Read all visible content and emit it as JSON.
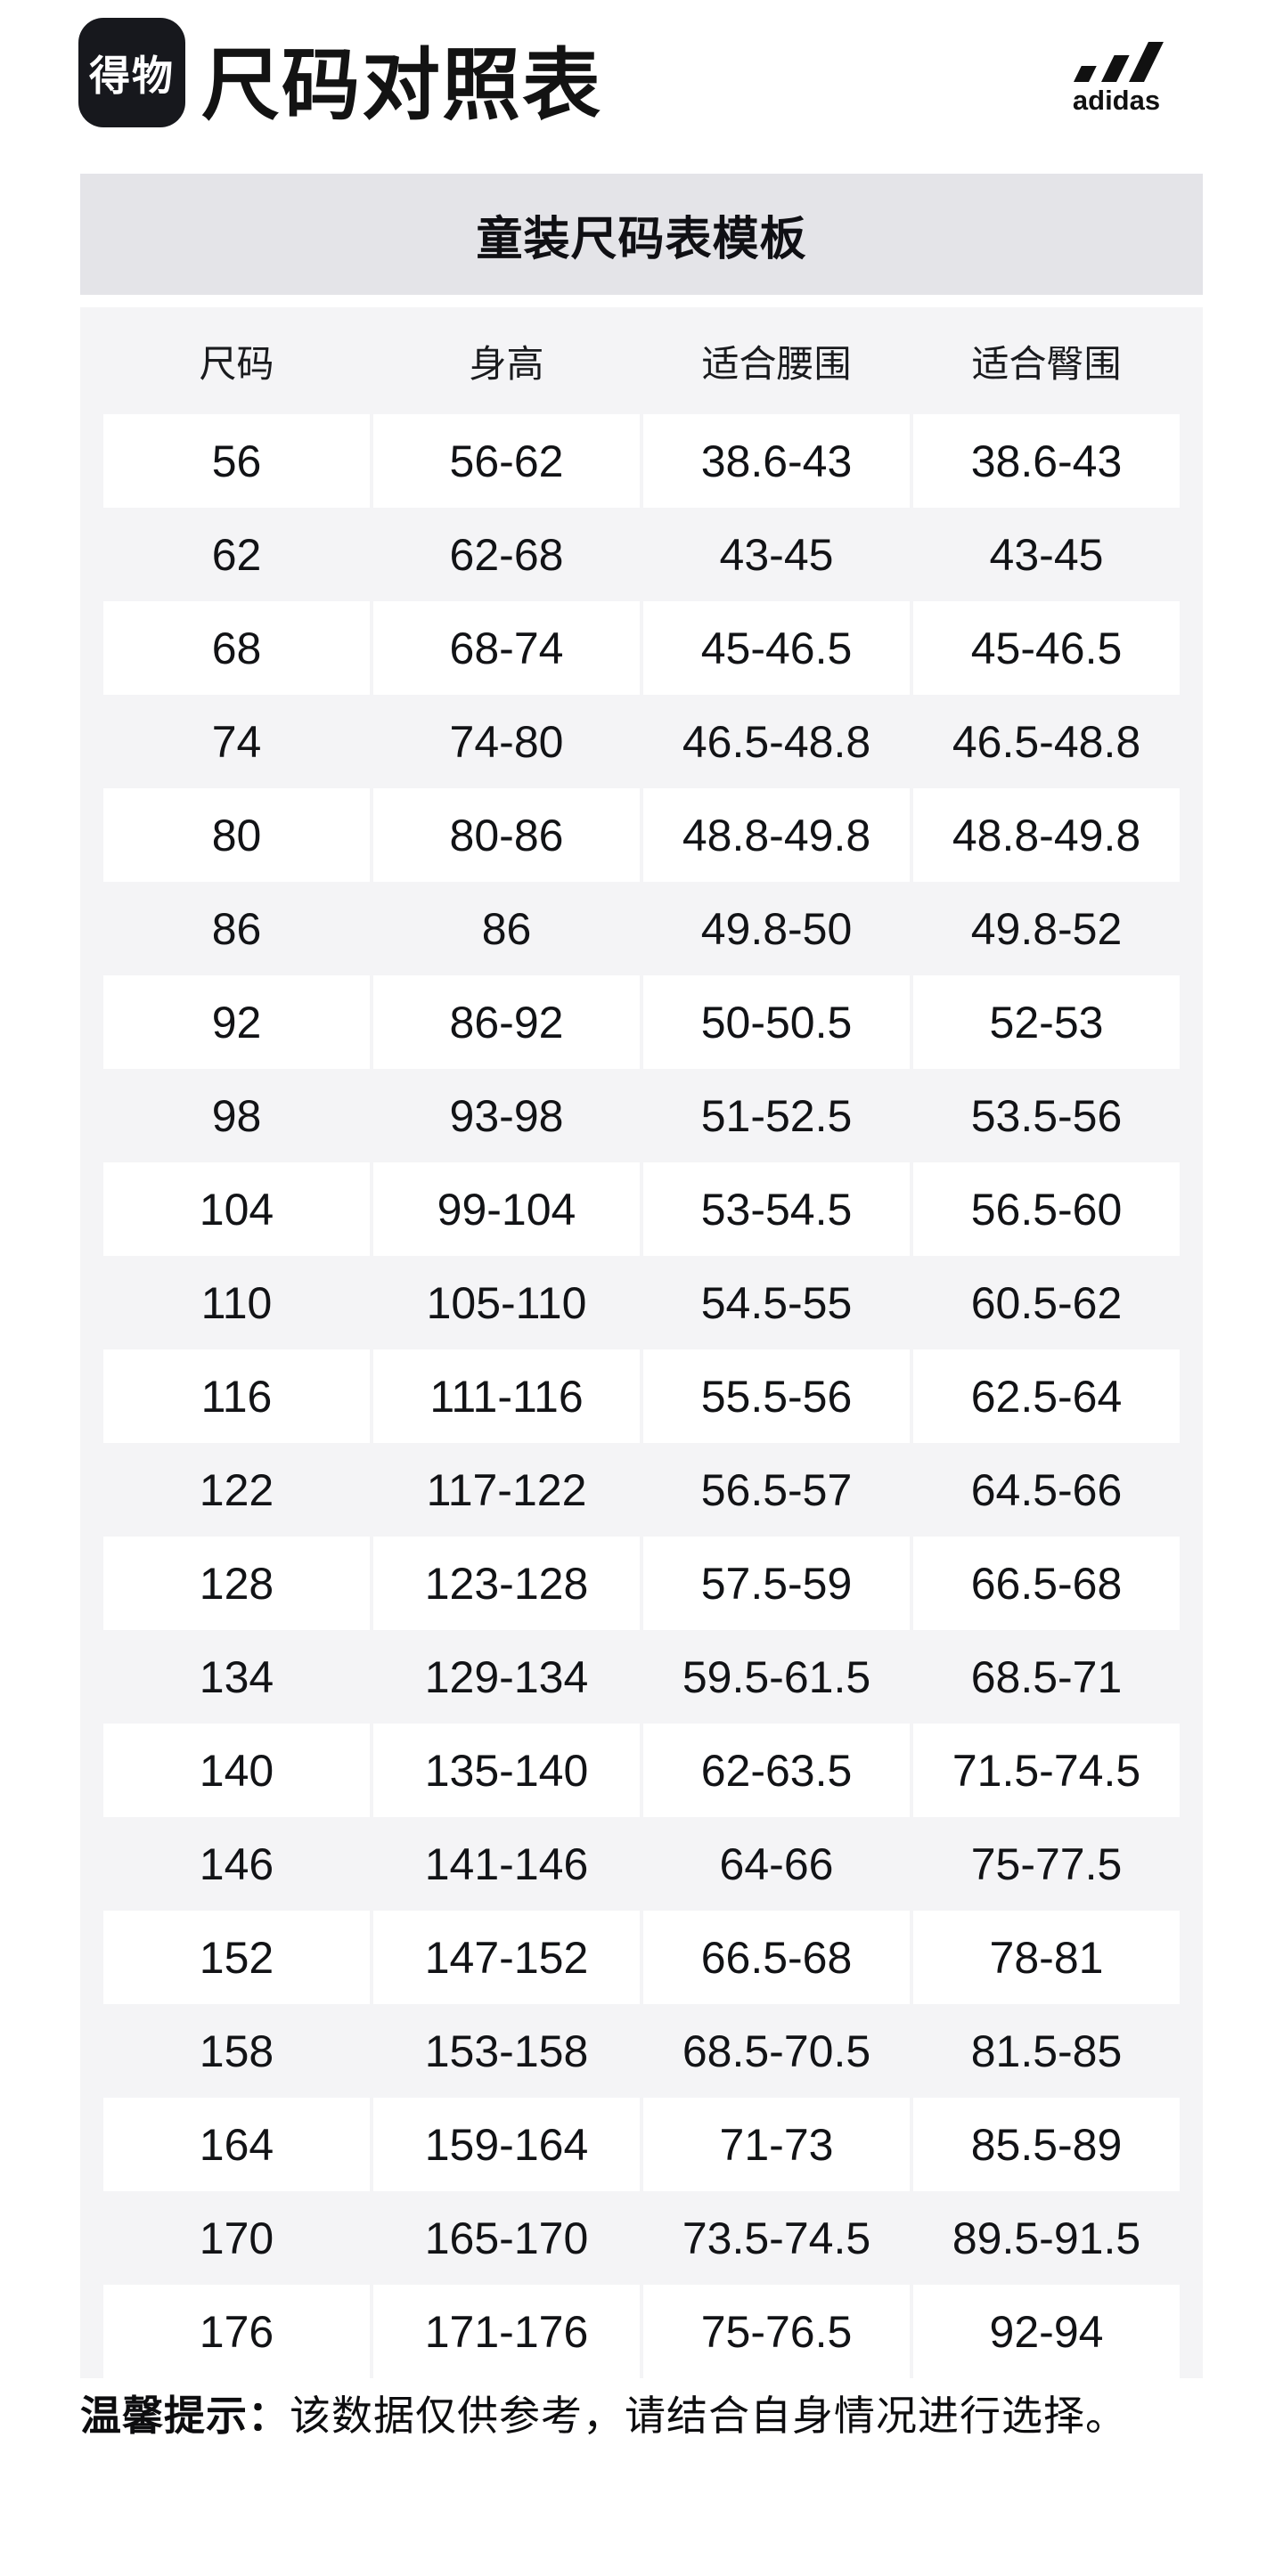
{
  "header": {
    "logo_text": "得物",
    "title": "尺码对照表",
    "brand": "adidas"
  },
  "banner": {
    "title": "童装尺码表模板"
  },
  "table": {
    "columns": [
      "尺码",
      "身高",
      "适合腰围",
      "适合臀围"
    ],
    "rows": [
      [
        "56",
        "56-62",
        "38.6-43",
        "38.6-43"
      ],
      [
        "62",
        "62-68",
        "43-45",
        "43-45"
      ],
      [
        "68",
        "68-74",
        "45-46.5",
        "45-46.5"
      ],
      [
        "74",
        "74-80",
        "46.5-48.8",
        "46.5-48.8"
      ],
      [
        "80",
        "80-86",
        "48.8-49.8",
        "48.8-49.8"
      ],
      [
        "86",
        "86",
        "49.8-50",
        "49.8-52"
      ],
      [
        "92",
        "86-92",
        "50-50.5",
        "52-53"
      ],
      [
        "98",
        "93-98",
        "51-52.5",
        "53.5-56"
      ],
      [
        "104",
        "99-104",
        "53-54.5",
        "56.5-60"
      ],
      [
        "110",
        "105-110",
        "54.5-55",
        "60.5-62"
      ],
      [
        "116",
        "111-116",
        "55.5-56",
        "62.5-64"
      ],
      [
        "122",
        "117-122",
        "56.5-57",
        "64.5-66"
      ],
      [
        "128",
        "123-128",
        "57.5-59",
        "66.5-68"
      ],
      [
        "134",
        "129-134",
        "59.5-61.5",
        "68.5-71"
      ],
      [
        "140",
        "135-140",
        "62-63.5",
        "71.5-74.5"
      ],
      [
        "146",
        "141-146",
        "64-66",
        "75-77.5"
      ],
      [
        "152",
        "147-152",
        "66.5-68",
        "78-81"
      ],
      [
        "158",
        "153-158",
        "68.5-70.5",
        "81.5-85"
      ],
      [
        "164",
        "159-164",
        "71-73",
        "85.5-89"
      ],
      [
        "170",
        "165-170",
        "73.5-74.5",
        "89.5-91.5"
      ],
      [
        "176",
        "171-176",
        "75-76.5",
        "92-94"
      ]
    ]
  },
  "footer": {
    "tip_label": "温馨提示：",
    "tip_text": "该数据仅供参考，请结合自身情况进行选择。"
  },
  "colors": {
    "banner_bg": "#e4e4e8",
    "table_bg": "#f4f4f6",
    "row_cell_bg": "#ffffff",
    "logo_bg": "#17181d",
    "text": "#131418"
  }
}
